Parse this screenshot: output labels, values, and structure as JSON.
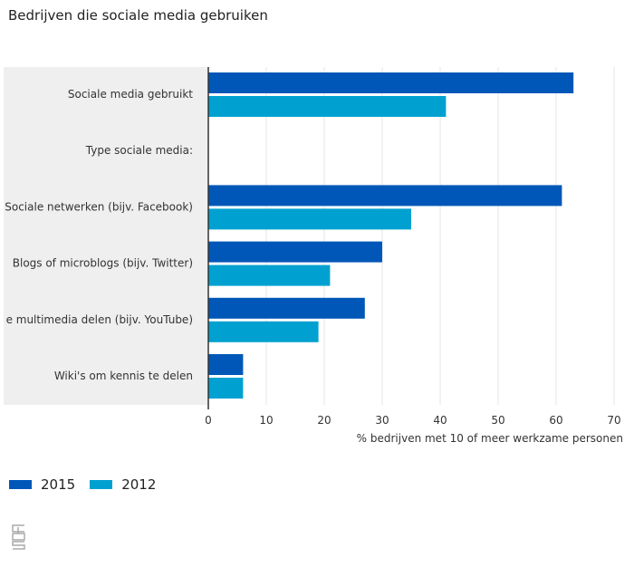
{
  "chart_data": {
    "type": "bar",
    "orientation": "horizontal",
    "title": "Bedrijven die sociale media gebruiken",
    "xlabel": "% bedrijven met 10 of meer werkzame personen",
    "ylabel": "",
    "xlim": [
      0,
      70
    ],
    "xticks": [
      0,
      10,
      20,
      30,
      40,
      50,
      60,
      70
    ],
    "grid": true,
    "legend_position": "bottom-left",
    "categories": [
      "Sociale media gebruikt",
      "Type sociale media:",
      "Sociale netwerken (bijv. Facebook)",
      "Blogs of microblogs (bijv. Twitter)",
      "e multimedia delen (bijv. YouTube)",
      "Wiki's om kennis te delen"
    ],
    "series": [
      {
        "name": "2015",
        "color": "#0057b8",
        "values": [
          63,
          null,
          61,
          30,
          27,
          6
        ]
      },
      {
        "name": "2012",
        "color": "#00a1d0",
        "values": [
          41,
          null,
          35,
          21,
          19,
          6
        ]
      }
    ]
  },
  "logo_text": "cbs"
}
